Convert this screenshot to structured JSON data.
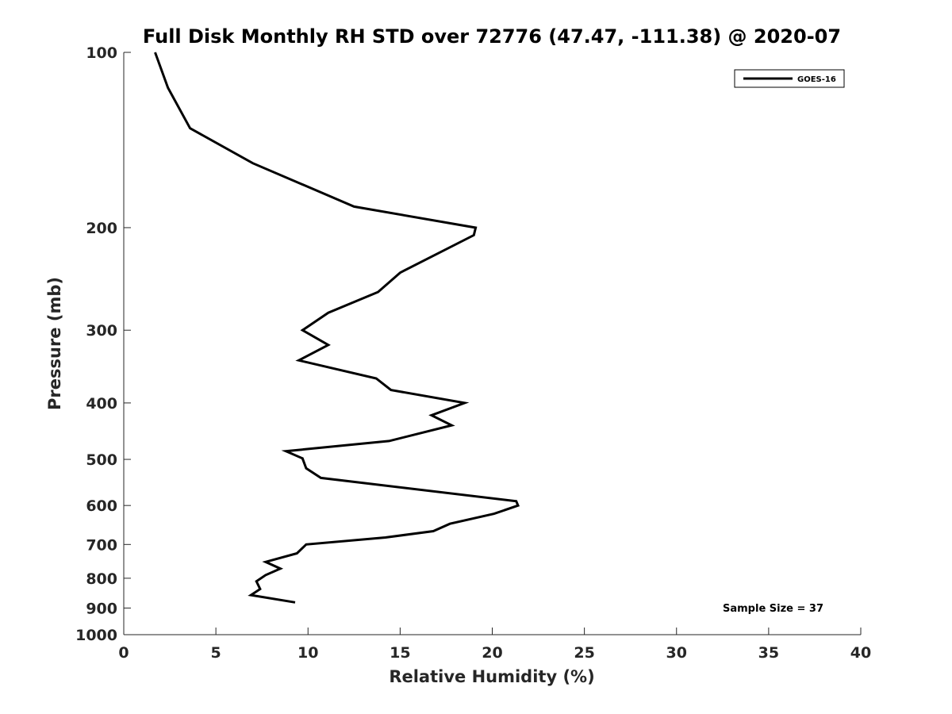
{
  "chart_data": {
    "type": "line",
    "title": "Full Disk Monthly RH STD over 72776 (47.47, -111.38) @ 2020-07",
    "xlabel": "Relative Humidity (%)",
    "ylabel": "Pressure (mb)",
    "xlim": [
      0,
      40
    ],
    "ylim": [
      100,
      1000
    ],
    "yscale": "log",
    "y_inverted": true,
    "xticks": [
      0,
      5,
      10,
      15,
      20,
      25,
      30,
      35,
      40
    ],
    "xtick_labels": [
      "0",
      "5",
      "10",
      "15",
      "20",
      "25",
      "30",
      "35",
      "40"
    ],
    "yticks": [
      100,
      200,
      300,
      400,
      500,
      600,
      700,
      800,
      900,
      1000
    ],
    "ytick_labels": [
      "100",
      "200",
      "300",
      "400",
      "500",
      "600",
      "700",
      "800",
      "900",
      "1000"
    ],
    "grid": false,
    "legend_position": "top-right",
    "series": [
      {
        "name": "GOES-16",
        "color": "#000000",
        "x": [
          1.7,
          2.4,
          3.6,
          7.0,
          12.5,
          19.1,
          19.0,
          15.0,
          13.8,
          11.1,
          9.7,
          11.1,
          9.5,
          13.7,
          14.5,
          18.5,
          16.7,
          17.8,
          14.4,
          8.8,
          9.7,
          9.9,
          10.7,
          21.3,
          21.4,
          20.1,
          17.7,
          16.8,
          14.2,
          9.9,
          9.4,
          7.7,
          8.5,
          7.7,
          7.2,
          7.4,
          6.9,
          9.3
        ],
        "y": [
          100,
          115,
          135,
          155,
          184,
          200,
          206,
          239,
          258,
          280,
          300,
          318,
          338,
          363,
          380,
          400,
          420,
          437,
          465,
          484,
          498,
          518,
          538,
          590,
          600,
          620,
          645,
          664,
          681,
          700,
          725,
          750,
          770,
          790,
          810,
          835,
          855,
          880
        ]
      }
    ],
    "annotations": [
      "Sample Size = 37"
    ]
  }
}
